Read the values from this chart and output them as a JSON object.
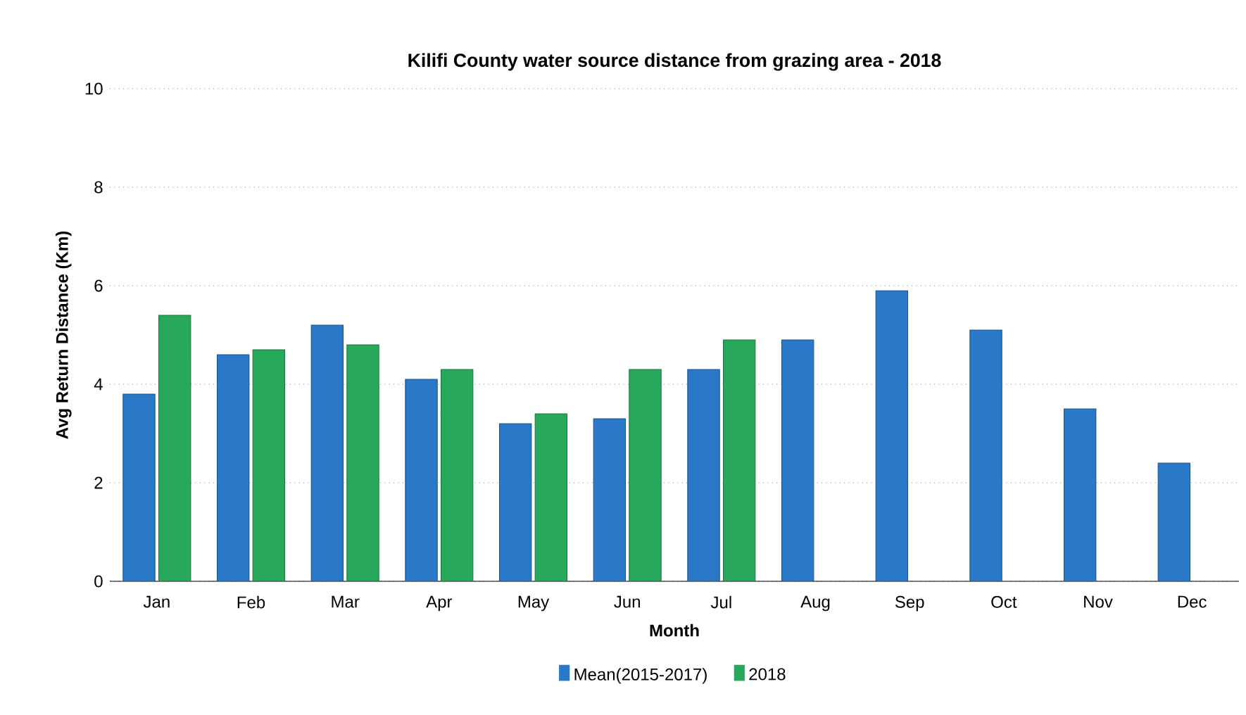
{
  "chart_data": {
    "type": "bar",
    "title": "Kilifi County water source distance from grazing area - 2018",
    "xlabel": "Month",
    "ylabel": "Avg Return Distance (Km)",
    "categories": [
      "Jan",
      "Feb",
      "Mar",
      "Apr",
      "May",
      "Jun",
      "Jul",
      "Aug",
      "Sep",
      "Oct",
      "Nov",
      "Dec"
    ],
    "series": [
      {
        "name": "Mean(2015-2017)",
        "color": "#2a78c8",
        "values": [
          3.8,
          4.6,
          5.2,
          4.1,
          3.2,
          3.3,
          4.3,
          4.9,
          5.9,
          5.1,
          3.5,
          2.4
        ]
      },
      {
        "name": "2018",
        "color": "#27a85a",
        "values": [
          5.4,
          4.7,
          4.8,
          4.3,
          3.4,
          4.3,
          4.9,
          null,
          null,
          null,
          null,
          null
        ]
      }
    ],
    "ylim": [
      0,
      10
    ],
    "yticks": [
      0,
      2,
      4,
      6,
      8,
      10
    ],
    "grid": "y",
    "legend": "bottom"
  }
}
